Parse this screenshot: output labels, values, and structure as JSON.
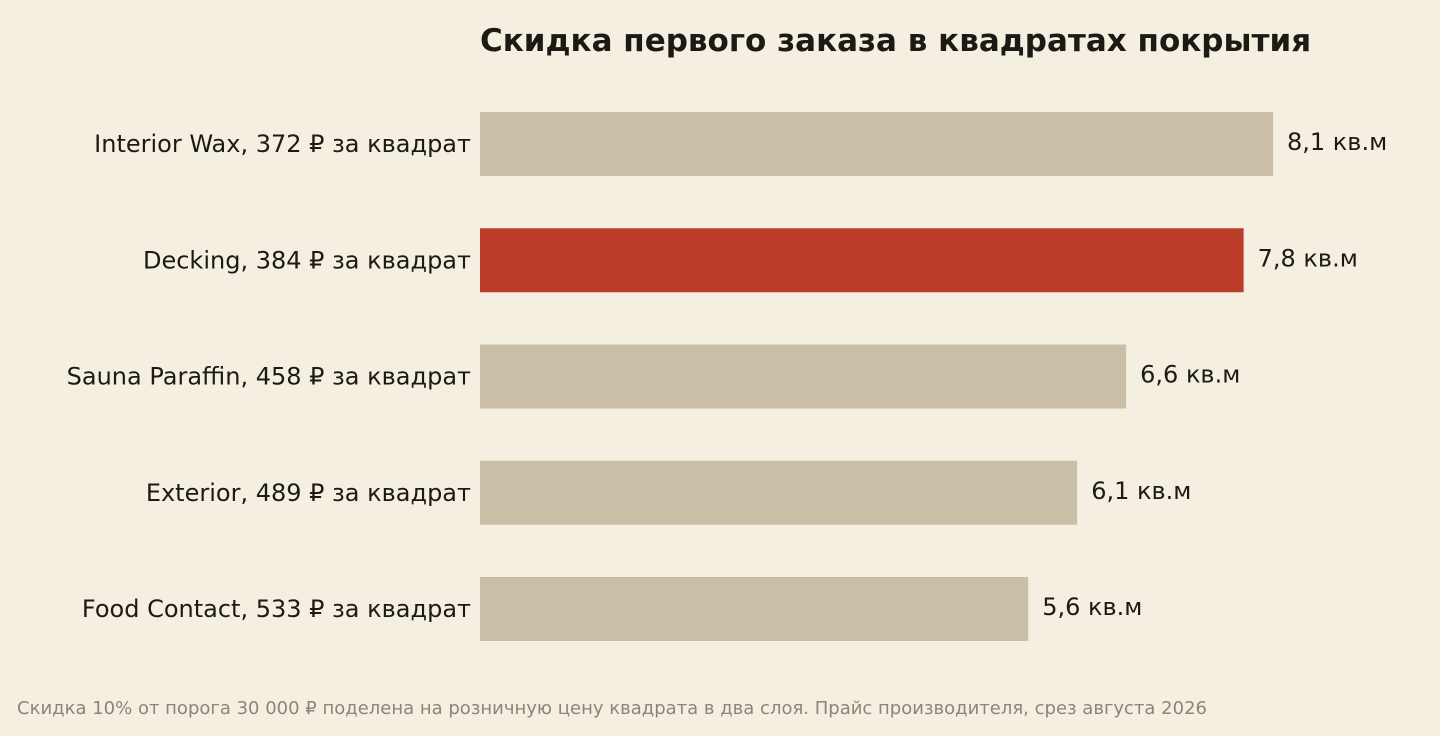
{
  "chart_data": {
    "type": "bar",
    "orientation": "horizontal",
    "title": "Скидка первого заказа в квадратах покрытия",
    "categories": [
      "Interior Wax, 372 ₽ за квадрат",
      "Decking, 384 ₽ за квадрат",
      "Sauna Paraffin, 458 ₽ за квадрат",
      "Exterior, 489 ₽ за квадрат",
      "Food Contact, 533 ₽ за квадрат"
    ],
    "values": [
      8.1,
      7.8,
      6.6,
      6.1,
      5.6
    ],
    "value_labels": [
      "8,1 кв.м",
      "7,8 кв.м",
      "6,6 кв.м",
      "6,1 кв.м",
      "5,6 кв.м"
    ],
    "highlight_index": 1,
    "xlim": [
      0,
      8.1
    ],
    "grid": false,
    "legend": "none",
    "colors": {
      "background": "#f5efe2",
      "bar": "#c9bfa7",
      "highlight": "#bb3d27",
      "text": "#1c1a14",
      "note": "#8a8578"
    },
    "note": "Скидка 10% от порога 30 000 ₽ поделена на розничную цену квадрата в два слоя. Прайс производителя, срез августа 2026"
  }
}
